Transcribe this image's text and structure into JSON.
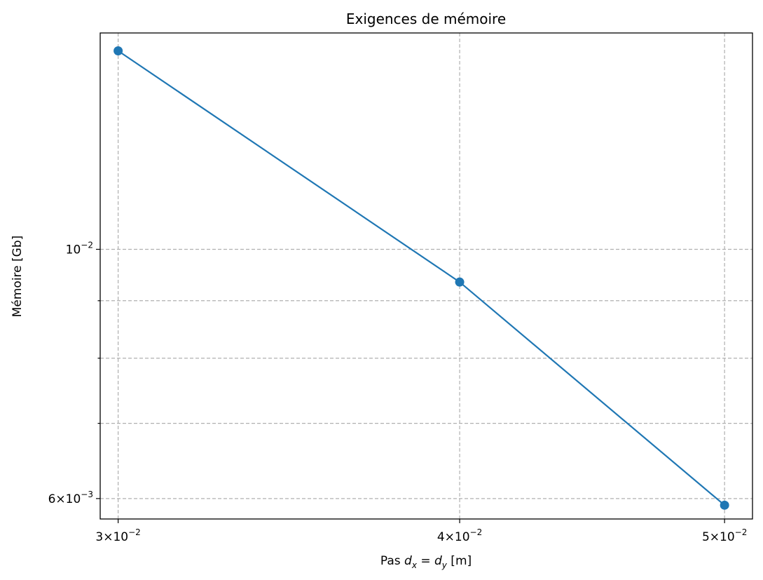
{
  "chart_data": {
    "type": "line",
    "title": "Exigences de mémoire",
    "xlabel_parts": [
      "Pas ",
      "d",
      "x",
      " = ",
      "d",
      "y",
      " [m]"
    ],
    "ylabel": "Mémoire [Gb]",
    "xscale": "log",
    "yscale": "log",
    "grid": true,
    "xlim": [
      0.02955,
      0.05119
    ],
    "ylim": [
      0.005754,
      0.01558
    ],
    "x_ticks": [
      {
        "value": 0.03,
        "mantissa": "3",
        "base": "10",
        "exp": "−2"
      },
      {
        "value": 0.04,
        "mantissa": "4",
        "base": "10",
        "exp": "−2"
      },
      {
        "value": 0.05,
        "mantissa": "5",
        "base": "10",
        "exp": "−2"
      }
    ],
    "y_major_ticks": [
      {
        "value": 0.006,
        "mantissa": "6",
        "base": "10",
        "exp": "−3"
      },
      {
        "value": 0.01,
        "mantissa": "",
        "base": "10",
        "exp": "−2"
      }
    ],
    "y_minor_gridlines": [
      0.007,
      0.008,
      0.009
    ],
    "series": [
      {
        "color": "#1f77b4",
        "marker": "circle",
        "x": [
          0.03,
          0.04,
          0.05
        ],
        "y": [
          0.01502,
          0.009351,
          0.005919
        ]
      }
    ]
  }
}
